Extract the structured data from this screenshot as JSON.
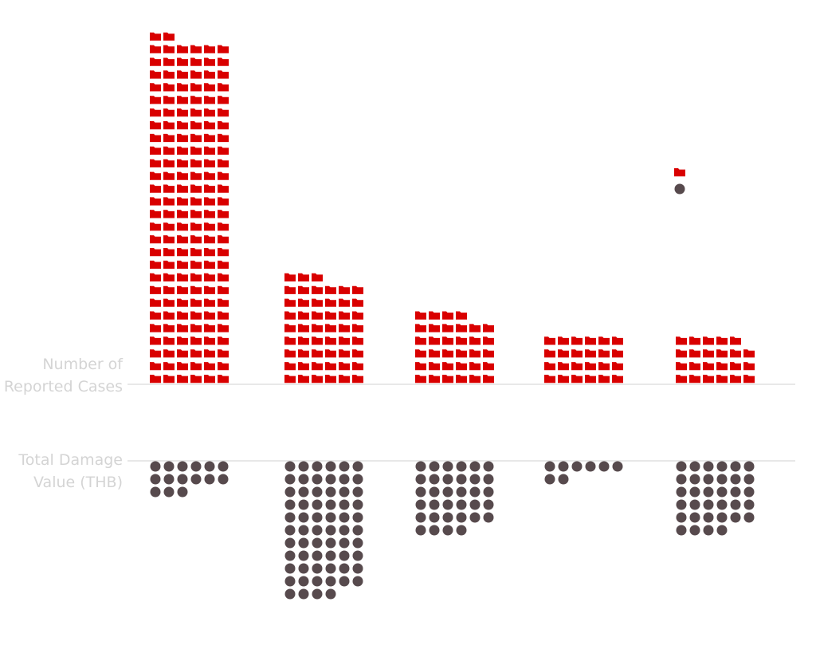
{
  "chart_data": {
    "type": "pictogram",
    "title": "",
    "cases_label": "Number of Reported Cases",
    "damage_label": "Total Damage Value (THB)",
    "categories": [
      "",
      "",
      "",
      "",
      ""
    ],
    "series": [
      {
        "key": "cases",
        "icon": "folder-icon",
        "color": "#d90000",
        "values": [
          164,
          51,
          34,
          24,
          23
        ]
      },
      {
        "key": "damage",
        "icon": "circle-icon",
        "color": "#574a4d",
        "values": [
          15,
          64,
          34,
          8,
          34
        ]
      }
    ],
    "legend_items": [
      {
        "icon": "folder-icon",
        "color": "#d90000"
      },
      {
        "icon": "circle-icon",
        "color": "#574a4d"
      }
    ]
  }
}
